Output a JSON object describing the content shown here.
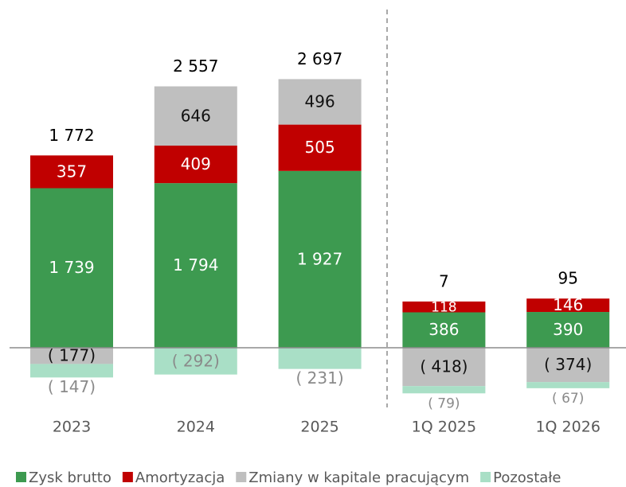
{
  "chart_data": {
    "type": "stacked-bar",
    "categories": [
      "2023",
      "2024",
      "2025",
      "1Q 2025",
      "1Q 2026"
    ],
    "series": [
      {
        "name": "Zysk brutto",
        "color": "#3d9a50",
        "values": [
          1739,
          1794,
          1927,
          386,
          390
        ],
        "value_labels": [
          "1 739",
          "1 794",
          "1 927",
          "386",
          "390"
        ]
      },
      {
        "name": "Amortyzacja",
        "color": "#c00000",
        "values": [
          357,
          409,
          505,
          118,
          146
        ]
      },
      {
        "name": "Zmiany w kapitale pracującym",
        "color": "#bfbfbf",
        "values": [
          -177,
          646,
          496,
          -418,
          -374
        ],
        "value_labels": [
          "( 177)",
          "646",
          "496",
          "( 418)",
          "( 374)"
        ]
      },
      {
        "name": "Pozostałe",
        "color": "#a9dfc6",
        "values": [
          -147,
          -292,
          -231,
          -79,
          -67
        ],
        "value_labels": [
          "( 147)",
          "( 292)",
          "( 231)",
          "( 79)",
          "( 67)"
        ]
      }
    ],
    "totals": [
      1772,
      2557,
      2697,
      7,
      95
    ],
    "total_labels": [
      "1 772",
      "2 557",
      "2 697",
      "7",
      "95"
    ]
  }
}
